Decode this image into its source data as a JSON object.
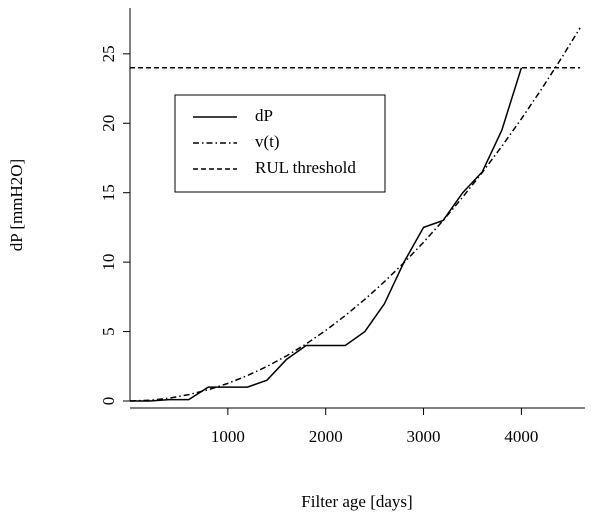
{
  "chart_data": {
    "type": "line",
    "xlabel": "Filter age [days]",
    "ylabel": "dP [mmH2O]",
    "x": [
      0,
      200,
      400,
      600,
      800,
      1000,
      1200,
      1400,
      1600,
      1800,
      2000,
      2200,
      2400,
      2600,
      2800,
      3000,
      3200,
      3400,
      3600,
      3800,
      4000,
      4200,
      4400,
      4600
    ],
    "series": [
      {
        "name": "dP",
        "color": "#000000",
        "dash": "none",
        "values": [
          0,
          0,
          0.1,
          0.1,
          1,
          1,
          1,
          1.5,
          3,
          4,
          4,
          4,
          5,
          7,
          10,
          12.5,
          13,
          15,
          16.5,
          19.5,
          24,
          null,
          null,
          null
        ]
      },
      {
        "name": "v(t)",
        "color": "#000000",
        "dash": "6 3 1.5 3",
        "values": [
          0,
          0.05,
          0.2,
          0.46,
          0.81,
          1.27,
          1.83,
          2.49,
          3.25,
          4.11,
          5.08,
          6.15,
          7.32,
          8.59,
          9.96,
          11.43,
          13.0,
          14.68,
          16.46,
          18.34,
          20.32,
          22.4,
          24.59,
          26.87
        ]
      },
      {
        "name": "RUL threshold",
        "color": "#000000",
        "dash": "5 3",
        "values": [
          24,
          24,
          24,
          24,
          24,
          24,
          24,
          24,
          24,
          24,
          24,
          24,
          24,
          24,
          24,
          24,
          24,
          24,
          24,
          24,
          24,
          24,
          24,
          24
        ]
      }
    ],
    "xlim": [
      0,
      4650
    ],
    "ylim": [
      0,
      28.3
    ],
    "xticks": [
      1000,
      2000,
      3000,
      4000
    ],
    "yticks": [
      0,
      5,
      10,
      15,
      20,
      25
    ],
    "legend": "top-left"
  }
}
